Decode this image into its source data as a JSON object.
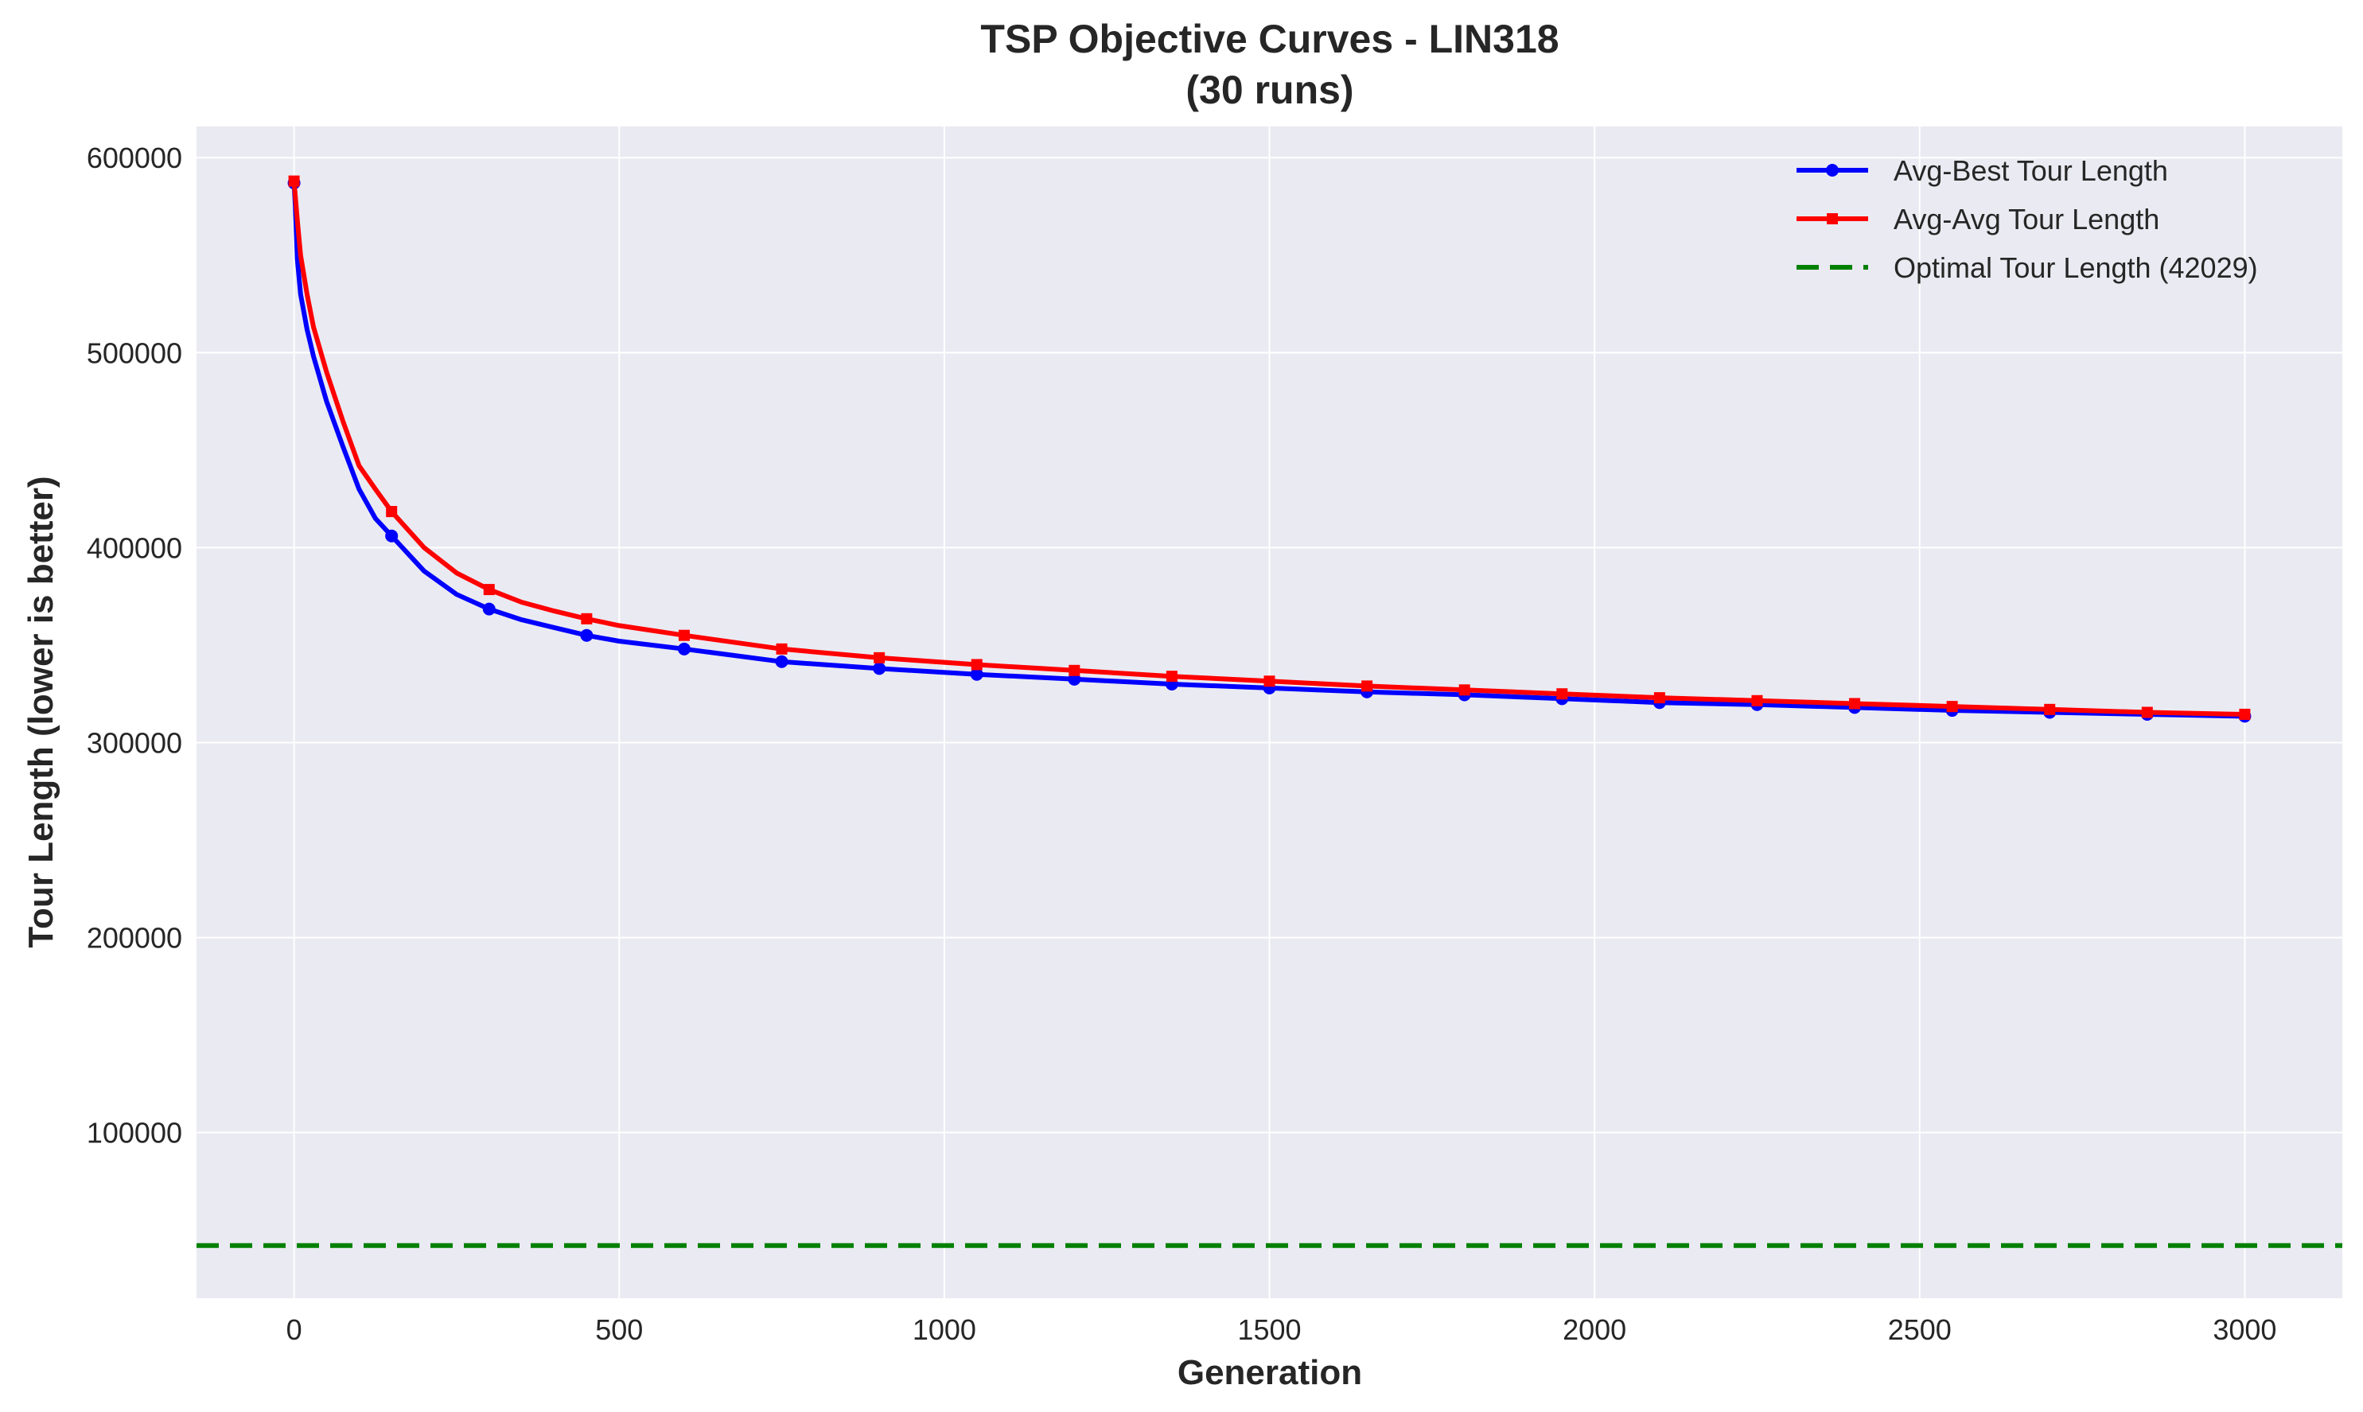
{
  "chart_data": {
    "type": "line",
    "title": "TSP Objective Curves - LIN318",
    "subtitle": "(30 runs)",
    "xlabel": "Generation",
    "ylabel": "Tour Length (lower is better)",
    "xlim": [
      -150,
      3150
    ],
    "ylim": [
      15000,
      616000
    ],
    "xticks": [
      0,
      500,
      1000,
      1500,
      2000,
      2500,
      3000
    ],
    "yticks": [
      100000,
      200000,
      300000,
      400000,
      500000,
      600000
    ],
    "grid": true,
    "legend_position": "top-right",
    "series": [
      {
        "name": "Avg-Best Tour Length",
        "color": "#0000ff",
        "marker": "circle",
        "x": [
          0,
          2,
          5,
          10,
          20,
          30,
          50,
          75,
          100,
          125,
          150,
          200,
          250,
          300,
          350,
          400,
          450,
          500,
          600,
          750,
          900,
          1050,
          1200,
          1350,
          1500,
          1650,
          1800,
          1950,
          2100,
          2250,
          2400,
          2550,
          2700,
          2850,
          3000
        ],
        "y": [
          587000,
          575000,
          548000,
          530000,
          512000,
          498000,
          475000,
          452000,
          430000,
          415000,
          406000,
          388000,
          376000,
          368500,
          363000,
          359000,
          355000,
          352000,
          348000,
          341500,
          338000,
          335000,
          332500,
          330000,
          328000,
          326000,
          324500,
          322500,
          320500,
          319500,
          318000,
          316500,
          315500,
          314500,
          313500
        ],
        "markers_x": [
          0,
          150,
          300,
          450,
          600,
          750,
          900,
          1050,
          1200,
          1350,
          1500,
          1650,
          1800,
          1950,
          2100,
          2250,
          2400,
          2550,
          2700,
          2850,
          3000
        ]
      },
      {
        "name": "Avg-Avg Tour Length",
        "color": "#ff0000",
        "marker": "square",
        "x": [
          0,
          2,
          5,
          10,
          20,
          30,
          50,
          75,
          100,
          125,
          150,
          200,
          250,
          300,
          350,
          400,
          450,
          500,
          600,
          750,
          900,
          1050,
          1200,
          1350,
          1500,
          1650,
          1800,
          1950,
          2100,
          2250,
          2400,
          2550,
          2700,
          2850,
          3000
        ],
        "y": [
          588000,
          580000,
          568000,
          550000,
          530000,
          513000,
          490000,
          465000,
          442000,
          430000,
          418500,
          400000,
          387000,
          378500,
          372000,
          367500,
          363500,
          360000,
          355000,
          348000,
          343500,
          340000,
          337000,
          334000,
          331500,
          329000,
          327000,
          325000,
          323000,
          321500,
          320000,
          318500,
          317000,
          315500,
          314500
        ],
        "markers_x": [
          0,
          150,
          300,
          450,
          600,
          750,
          900,
          1050,
          1200,
          1350,
          1500,
          1650,
          1800,
          1950,
          2100,
          2250,
          2400,
          2550,
          2700,
          2850,
          3000
        ]
      }
    ],
    "reference_lines": [
      {
        "name": "Optimal Tour Length (42029)",
        "y": 42029,
        "color": "#008000",
        "style": "dashed"
      }
    ]
  }
}
